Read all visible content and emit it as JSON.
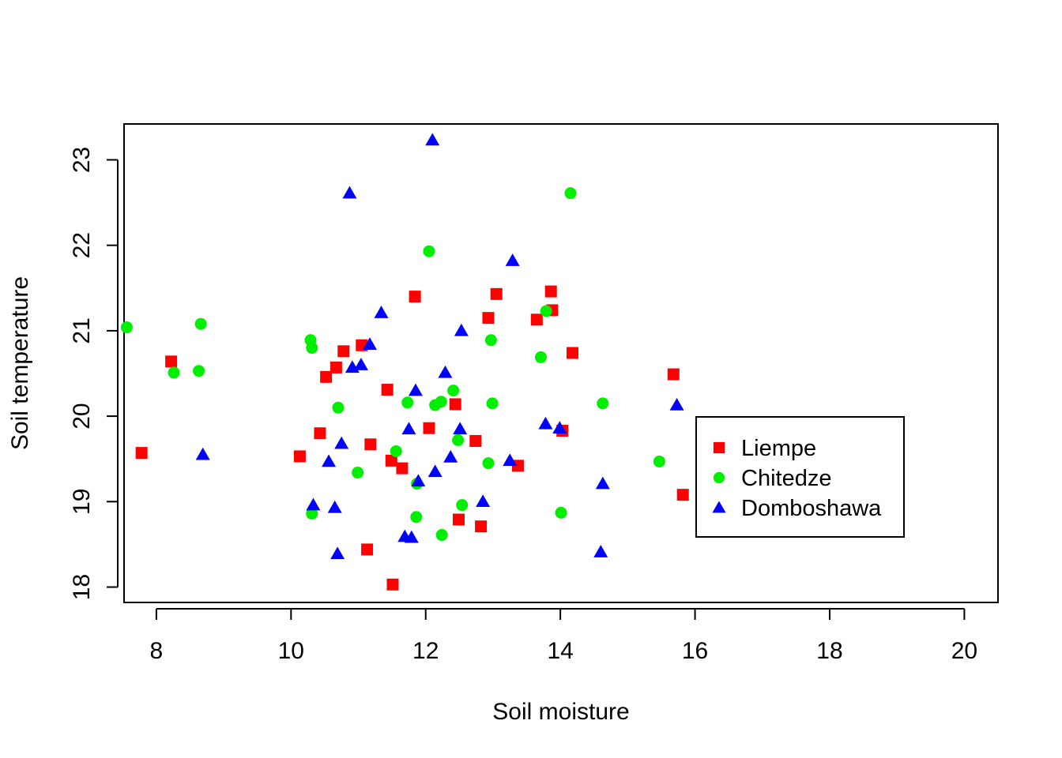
{
  "chart_data": {
    "type": "scatter",
    "title": "",
    "xlabel": "Soil moisture",
    "ylabel": "Soil temperature",
    "xlim": [
      7.52,
      20.5
    ],
    "ylim": [
      17.82,
      23.42
    ],
    "x_ticks": [
      8,
      10,
      12,
      14,
      16,
      18,
      20
    ],
    "y_ticks": [
      18,
      19,
      20,
      21,
      22,
      23
    ],
    "grid": false,
    "legend_position": "right",
    "series": [
      {
        "name": "Liempe",
        "color": "#ff0000",
        "marker": "square",
        "points": [
          [
            7.78,
            19.57
          ],
          [
            8.22,
            20.64
          ],
          [
            10.13,
            19.53
          ],
          [
            10.43,
            19.8
          ],
          [
            10.52,
            20.46
          ],
          [
            10.67,
            20.57
          ],
          [
            10.78,
            20.76
          ],
          [
            11.05,
            20.83
          ],
          [
            11.13,
            18.44
          ],
          [
            11.18,
            19.67
          ],
          [
            11.43,
            20.31
          ],
          [
            11.49,
            19.48
          ],
          [
            11.51,
            18.03
          ],
          [
            11.65,
            19.39
          ],
          [
            11.84,
            21.4
          ],
          [
            12.05,
            19.86
          ],
          [
            12.44,
            20.14
          ],
          [
            12.49,
            18.79
          ],
          [
            12.74,
            19.71
          ],
          [
            12.82,
            18.71
          ],
          [
            12.93,
            21.15
          ],
          [
            13.05,
            21.43
          ],
          [
            13.37,
            19.42
          ],
          [
            13.65,
            21.13
          ],
          [
            13.86,
            21.46
          ],
          [
            13.88,
            21.24
          ],
          [
            14.03,
            19.83
          ],
          [
            14.18,
            20.74
          ],
          [
            15.68,
            20.49
          ],
          [
            15.82,
            19.08
          ]
        ]
      },
      {
        "name": "Chitedze",
        "color": "#00ee00",
        "marker": "circle",
        "points": [
          [
            7.56,
            21.04
          ],
          [
            8.26,
            20.51
          ],
          [
            8.63,
            20.53
          ],
          [
            8.66,
            21.08
          ],
          [
            10.29,
            20.89
          ],
          [
            10.31,
            20.8
          ],
          [
            10.31,
            18.86
          ],
          [
            10.7,
            20.1
          ],
          [
            10.99,
            19.34
          ],
          [
            11.56,
            19.59
          ],
          [
            11.73,
            20.16
          ],
          [
            11.86,
            18.82
          ],
          [
            11.87,
            19.21
          ],
          [
            12.05,
            21.93
          ],
          [
            12.14,
            20.13
          ],
          [
            12.23,
            20.17
          ],
          [
            12.24,
            18.61
          ],
          [
            12.41,
            20.3
          ],
          [
            12.48,
            19.72
          ],
          [
            12.54,
            18.96
          ],
          [
            12.93,
            19.45
          ],
          [
            12.97,
            20.89
          ],
          [
            12.99,
            20.15
          ],
          [
            13.71,
            20.69
          ],
          [
            13.79,
            21.23
          ],
          [
            14.01,
            18.87
          ],
          [
            14.15,
            22.61
          ],
          [
            14.63,
            20.15
          ],
          [
            15.47,
            19.47
          ]
        ]
      },
      {
        "name": "Domboshawa",
        "color": "#0000ff",
        "marker": "triangle",
        "points": [
          [
            8.69,
            19.55
          ],
          [
            10.33,
            18.96
          ],
          [
            10.56,
            19.47
          ],
          [
            10.65,
            18.93
          ],
          [
            10.69,
            18.39
          ],
          [
            10.75,
            19.68
          ],
          [
            10.87,
            22.61
          ],
          [
            10.91,
            20.57
          ],
          [
            11.04,
            20.6
          ],
          [
            11.17,
            20.84
          ],
          [
            11.34,
            21.21
          ],
          [
            11.69,
            18.59
          ],
          [
            11.75,
            19.85
          ],
          [
            11.79,
            18.58
          ],
          [
            11.85,
            20.3
          ],
          [
            11.89,
            19.24
          ],
          [
            12.1,
            23.23
          ],
          [
            12.14,
            19.35
          ],
          [
            12.29,
            20.51
          ],
          [
            12.37,
            19.52
          ],
          [
            12.51,
            19.85
          ],
          [
            12.53,
            21.0
          ],
          [
            12.85,
            19.0
          ],
          [
            13.25,
            19.48
          ],
          [
            13.29,
            21.82
          ],
          [
            13.78,
            19.91
          ],
          [
            13.99,
            19.86
          ],
          [
            14.6,
            18.41
          ],
          [
            14.63,
            19.21
          ],
          [
            15.73,
            20.13
          ]
        ]
      }
    ]
  }
}
